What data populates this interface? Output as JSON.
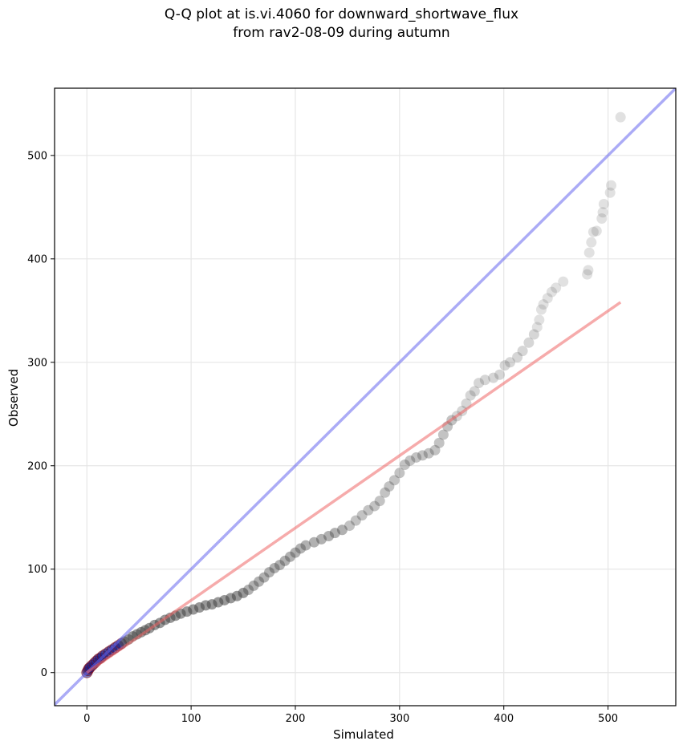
{
  "chart_data": {
    "type": "scatter",
    "title_line1": "Q-Q plot at is.vi.4060 for downward_shortwave_flux",
    "title_line2": "from rav2-08-09 during autumn",
    "xlabel": "Simulated",
    "ylabel": "Observed",
    "xlim": [
      -31,
      565
    ],
    "ylim": [
      -32,
      565
    ],
    "xticks": [
      0,
      100,
      200,
      300,
      400,
      500
    ],
    "yticks": [
      0,
      100,
      200,
      300,
      400,
      500
    ],
    "grid": true,
    "colors": {
      "identity_line": "#6666ee",
      "fit_line": "#ee6666",
      "points": "#444444",
      "low_points_edge": "#1a1a80",
      "low_points_edge2": "#8b0000"
    },
    "identity_line": {
      "x": [
        -31,
        565
      ],
      "y": [
        -31,
        565
      ]
    },
    "fit_line": {
      "x": [
        0,
        512
      ],
      "y": [
        0,
        358
      ]
    },
    "quantiles": [
      {
        "x": 0,
        "y": 0
      },
      {
        "x": 1,
        "y": 2
      },
      {
        "x": 2,
        "y": 4
      },
      {
        "x": 3,
        "y": 5
      },
      {
        "x": 5,
        "y": 7
      },
      {
        "x": 7,
        "y": 9
      },
      {
        "x": 9,
        "y": 11
      },
      {
        "x": 11,
        "y": 13
      },
      {
        "x": 13,
        "y": 14
      },
      {
        "x": 15,
        "y": 16
      },
      {
        "x": 18,
        "y": 18
      },
      {
        "x": 21,
        "y": 20
      },
      {
        "x": 24,
        "y": 22
      },
      {
        "x": 27,
        "y": 24
      },
      {
        "x": 30,
        "y": 26
      },
      {
        "x": 33,
        "y": 28
      },
      {
        "x": 36,
        "y": 30
      },
      {
        "x": 40,
        "y": 32
      },
      {
        "x": 44,
        "y": 35
      },
      {
        "x": 48,
        "y": 37
      },
      {
        "x": 52,
        "y": 39
      },
      {
        "x": 56,
        "y": 41
      },
      {
        "x": 60,
        "y": 43
      },
      {
        "x": 65,
        "y": 46
      },
      {
        "x": 70,
        "y": 48
      },
      {
        "x": 75,
        "y": 51
      },
      {
        "x": 80,
        "y": 53
      },
      {
        "x": 85,
        "y": 55
      },
      {
        "x": 90,
        "y": 57
      },
      {
        "x": 96,
        "y": 59
      },
      {
        "x": 102,
        "y": 61
      },
      {
        "x": 108,
        "y": 63
      },
      {
        "x": 114,
        "y": 65
      },
      {
        "x": 120,
        "y": 66
      },
      {
        "x": 126,
        "y": 68
      },
      {
        "x": 132,
        "y": 70
      },
      {
        "x": 138,
        "y": 72
      },
      {
        "x": 144,
        "y": 74
      },
      {
        "x": 150,
        "y": 77
      },
      {
        "x": 155,
        "y": 80
      },
      {
        "x": 160,
        "y": 84
      },
      {
        "x": 165,
        "y": 88
      },
      {
        "x": 170,
        "y": 92
      },
      {
        "x": 175,
        "y": 97
      },
      {
        "x": 180,
        "y": 101
      },
      {
        "x": 185,
        "y": 104
      },
      {
        "x": 190,
        "y": 108
      },
      {
        "x": 195,
        "y": 112
      },
      {
        "x": 200,
        "y": 116
      },
      {
        "x": 205,
        "y": 120
      },
      {
        "x": 210,
        "y": 123
      },
      {
        "x": 218,
        "y": 126
      },
      {
        "x": 225,
        "y": 129
      },
      {
        "x": 232,
        "y": 132
      },
      {
        "x": 238,
        "y": 135
      },
      {
        "x": 245,
        "y": 138
      },
      {
        "x": 252,
        "y": 142
      },
      {
        "x": 258,
        "y": 147
      },
      {
        "x": 264,
        "y": 152
      },
      {
        "x": 270,
        "y": 157
      },
      {
        "x": 276,
        "y": 161
      },
      {
        "x": 281,
        "y": 166
      },
      {
        "x": 286,
        "y": 174
      },
      {
        "x": 290,
        "y": 180
      },
      {
        "x": 295,
        "y": 186
      },
      {
        "x": 300,
        "y": 193
      },
      {
        "x": 305,
        "y": 201
      },
      {
        "x": 310,
        "y": 205
      },
      {
        "x": 316,
        "y": 208
      },
      {
        "x": 322,
        "y": 210
      },
      {
        "x": 328,
        "y": 212
      },
      {
        "x": 334,
        "y": 215
      },
      {
        "x": 338,
        "y": 222
      },
      {
        "x": 342,
        "y": 230
      },
      {
        "x": 346,
        "y": 238
      },
      {
        "x": 350,
        "y": 244
      },
      {
        "x": 355,
        "y": 248
      },
      {
        "x": 360,
        "y": 253
      },
      {
        "x": 364,
        "y": 260
      },
      {
        "x": 368,
        "y": 268
      },
      {
        "x": 372,
        "y": 272
      },
      {
        "x": 376,
        "y": 280
      },
      {
        "x": 382,
        "y": 283
      },
      {
        "x": 390,
        "y": 285
      },
      {
        "x": 396,
        "y": 288
      },
      {
        "x": 401,
        "y": 297
      },
      {
        "x": 406,
        "y": 300
      },
      {
        "x": 413,
        "y": 305
      },
      {
        "x": 418,
        "y": 311
      },
      {
        "x": 424,
        "y": 319
      },
      {
        "x": 429,
        "y": 327
      },
      {
        "x": 432,
        "y": 334
      },
      {
        "x": 434,
        "y": 341
      },
      {
        "x": 436,
        "y": 351
      },
      {
        "x": 438,
        "y": 356
      },
      {
        "x": 442,
        "y": 362
      },
      {
        "x": 446,
        "y": 368
      },
      {
        "x": 450,
        "y": 372
      },
      {
        "x": 457,
        "y": 378
      },
      {
        "x": 480,
        "y": 385
      },
      {
        "x": 481,
        "y": 389
      },
      {
        "x": 482,
        "y": 406
      },
      {
        "x": 484,
        "y": 416
      },
      {
        "x": 486,
        "y": 426
      },
      {
        "x": 489,
        "y": 427
      },
      {
        "x": 494,
        "y": 439
      },
      {
        "x": 495,
        "y": 445
      },
      {
        "x": 496,
        "y": 453
      },
      {
        "x": 502,
        "y": 464
      },
      {
        "x": 503,
        "y": 471
      },
      {
        "x": 512,
        "y": 537
      }
    ]
  }
}
